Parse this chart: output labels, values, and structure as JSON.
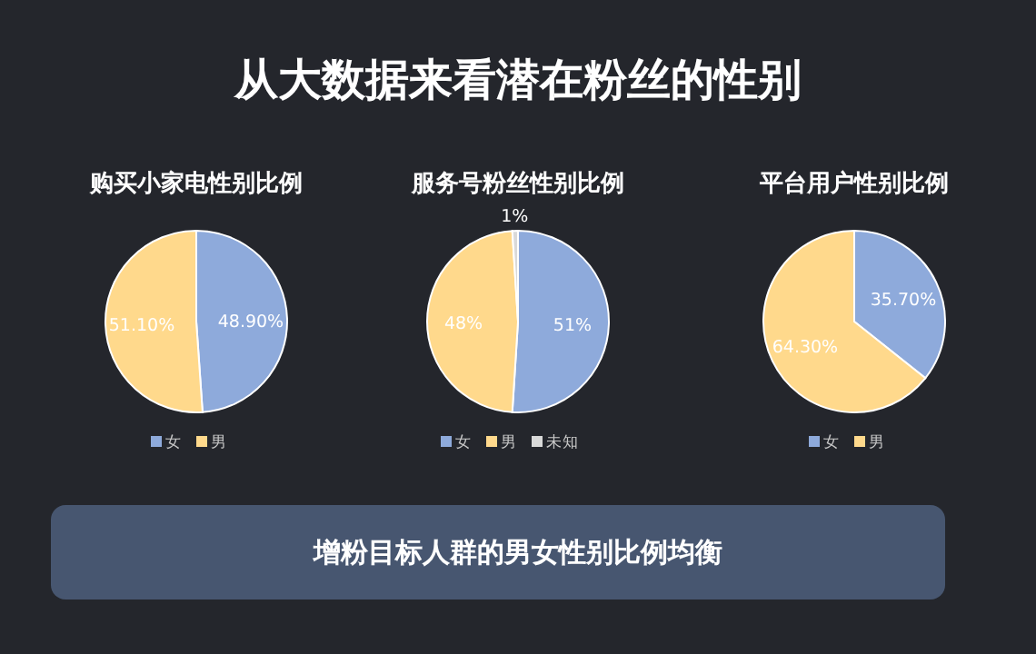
{
  "chart_data": [
    {
      "type": "other",
      "title": "从大数据来看潜在粉丝的性别",
      "annotations": [
        "增粉目标人群的男女性别比例均衡"
      ]
    },
    {
      "type": "pie",
      "title": "购买小家电性别比例",
      "categories": [
        "女",
        "男"
      ],
      "values": [
        48.9,
        51.1
      ],
      "value_labels": [
        "48.90%",
        "51.10%"
      ],
      "colors": [
        "#8eaadb",
        "#ffd98c"
      ],
      "legend": "bottom"
    },
    {
      "type": "pie",
      "title": "服务号粉丝性别比例",
      "categories": [
        "女",
        "男",
        "未知"
      ],
      "values": [
        51,
        48,
        1
      ],
      "value_labels": [
        "51%",
        "48%",
        "1%"
      ],
      "colors": [
        "#8eaadb",
        "#ffd98c",
        "#d9d9d9"
      ],
      "legend": "bottom"
    },
    {
      "type": "pie",
      "title": "平台用户性别比例",
      "categories": [
        "女",
        "男"
      ],
      "values": [
        35.7,
        64.3
      ],
      "value_labels": [
        "35.70%",
        "64.30%"
      ],
      "colors": [
        "#8eaadb",
        "#ffd98c"
      ],
      "legend": "bottom"
    }
  ]
}
